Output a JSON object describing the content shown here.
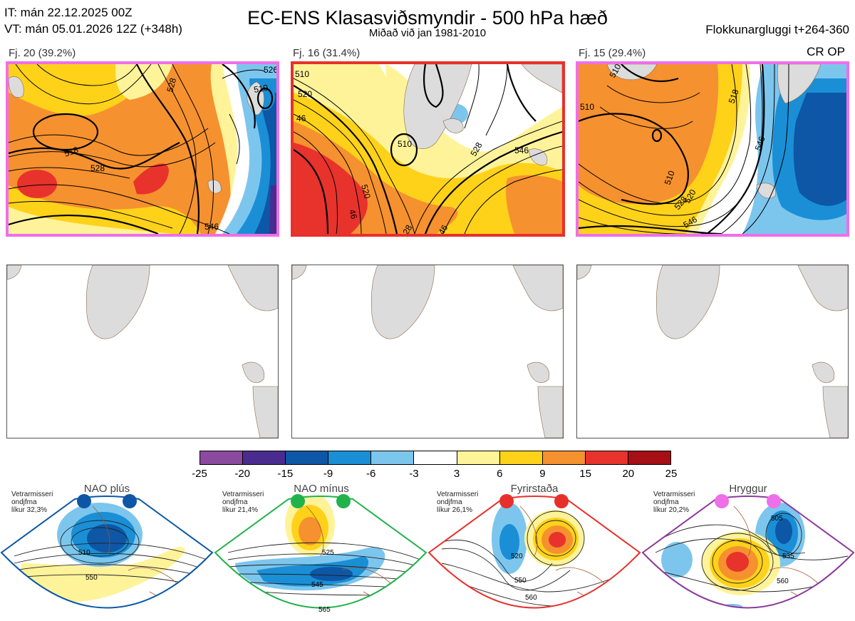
{
  "header": {
    "it_line": "IT: mán 22.12.2025 00Z",
    "vt_line": "VT: mán 05.01.2026 12Z  (+348h)",
    "title": "EC-ENS Klasasviðsmyndir - 500 hPa hæð",
    "subtitle": "Miðað við jan 1981-2010",
    "window": "Flokkunargluggi t+264-360",
    "cr_op": "CR OP"
  },
  "clusters": [
    {
      "label": "Fj. 20 (39.2%)",
      "border_color": "#ee6fe8",
      "contours": [
        "528",
        "518",
        "528",
        "546",
        "510",
        "526"
      ]
    },
    {
      "label": "Fj. 16 (31.4%)",
      "border_color": "#e8302a",
      "contours": [
        "510",
        "520",
        "46",
        "510",
        "528",
        "546",
        "520",
        "28",
        "46",
        "46"
      ]
    },
    {
      "label": "Fj. 15 (29.4%)",
      "border_color": "#ee6fe8",
      "contours": [
        "510",
        "510",
        "518",
        "520",
        "546",
        "510",
        "528",
        "546"
      ]
    }
  ],
  "colorbar": {
    "ticks": [
      "-25",
      "-20",
      "-15",
      "-9",
      "-6",
      "-3",
      "3",
      "6",
      "9",
      "15",
      "20",
      "25"
    ],
    "colors": [
      "#8b4a9e",
      "#4a2c8f",
      "#0d57a6",
      "#1a8fd6",
      "#7cc6ee",
      "#ffffff",
      "#fff39a",
      "#ffd21a",
      "#f6912f",
      "#e8322c",
      "#a50f15"
    ]
  },
  "regimes": [
    {
      "name": "NAO plús",
      "note": [
        "Vetrarmisseri",
        "ondjfma",
        "líkur 32,3%"
      ],
      "dot_color": "#0d57a6",
      "frame_color": "#0d57a6",
      "labels": [
        "510",
        "550"
      ]
    },
    {
      "name": "NAO mínus",
      "note": [
        "Vetrarmisseri",
        "ondjfma",
        "líkur 21,4%"
      ],
      "dot_color": "#22b24c",
      "frame_color": "#22b24c",
      "labels": [
        "525",
        "545",
        "565"
      ]
    },
    {
      "name": "Fyrirstaða",
      "note": [
        "Vetrarmisseri",
        "ondjfma",
        "líkur 26,1%"
      ],
      "dot_color": "#e8302a",
      "frame_color": "#e8302a",
      "labels": [
        "520",
        "550",
        "560"
      ]
    },
    {
      "name": "Hryggur",
      "note": [
        "Vetrarmisseri",
        "ondjfma",
        "líkur 20,2%"
      ],
      "dot_color": "#ee6fe8",
      "frame_color": "#8b3a9b",
      "labels": [
        "505",
        "535",
        "560"
      ]
    }
  ]
}
